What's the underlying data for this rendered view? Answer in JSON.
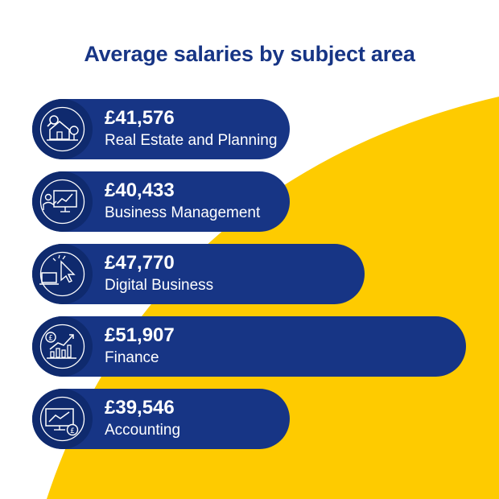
{
  "title": "Average salaries by subject area",
  "colors": {
    "bar": "#173585",
    "icon_bg": "#0f2a6e",
    "accent": "#fecb00",
    "text": "#ffffff"
  },
  "chart_data": {
    "type": "bar",
    "orientation": "horizontal",
    "title": "Average salaries by subject area",
    "categories": [
      "Real Estate and Planning",
      "Business Management",
      "Digital Business",
      "Finance",
      "Accounting"
    ],
    "values": [
      41576,
      40433,
      47770,
      51907,
      39546
    ],
    "value_labels": [
      "£41,576",
      "£40,433",
      "£47,770",
      "£51,907",
      "£39,546"
    ],
    "icons": [
      "house-magnifier-icon",
      "presentation-chart-icon",
      "laptop-cursor-icon",
      "finance-chart-icon",
      "monitor-pound-icon"
    ],
    "grid": false,
    "legend": "none"
  }
}
